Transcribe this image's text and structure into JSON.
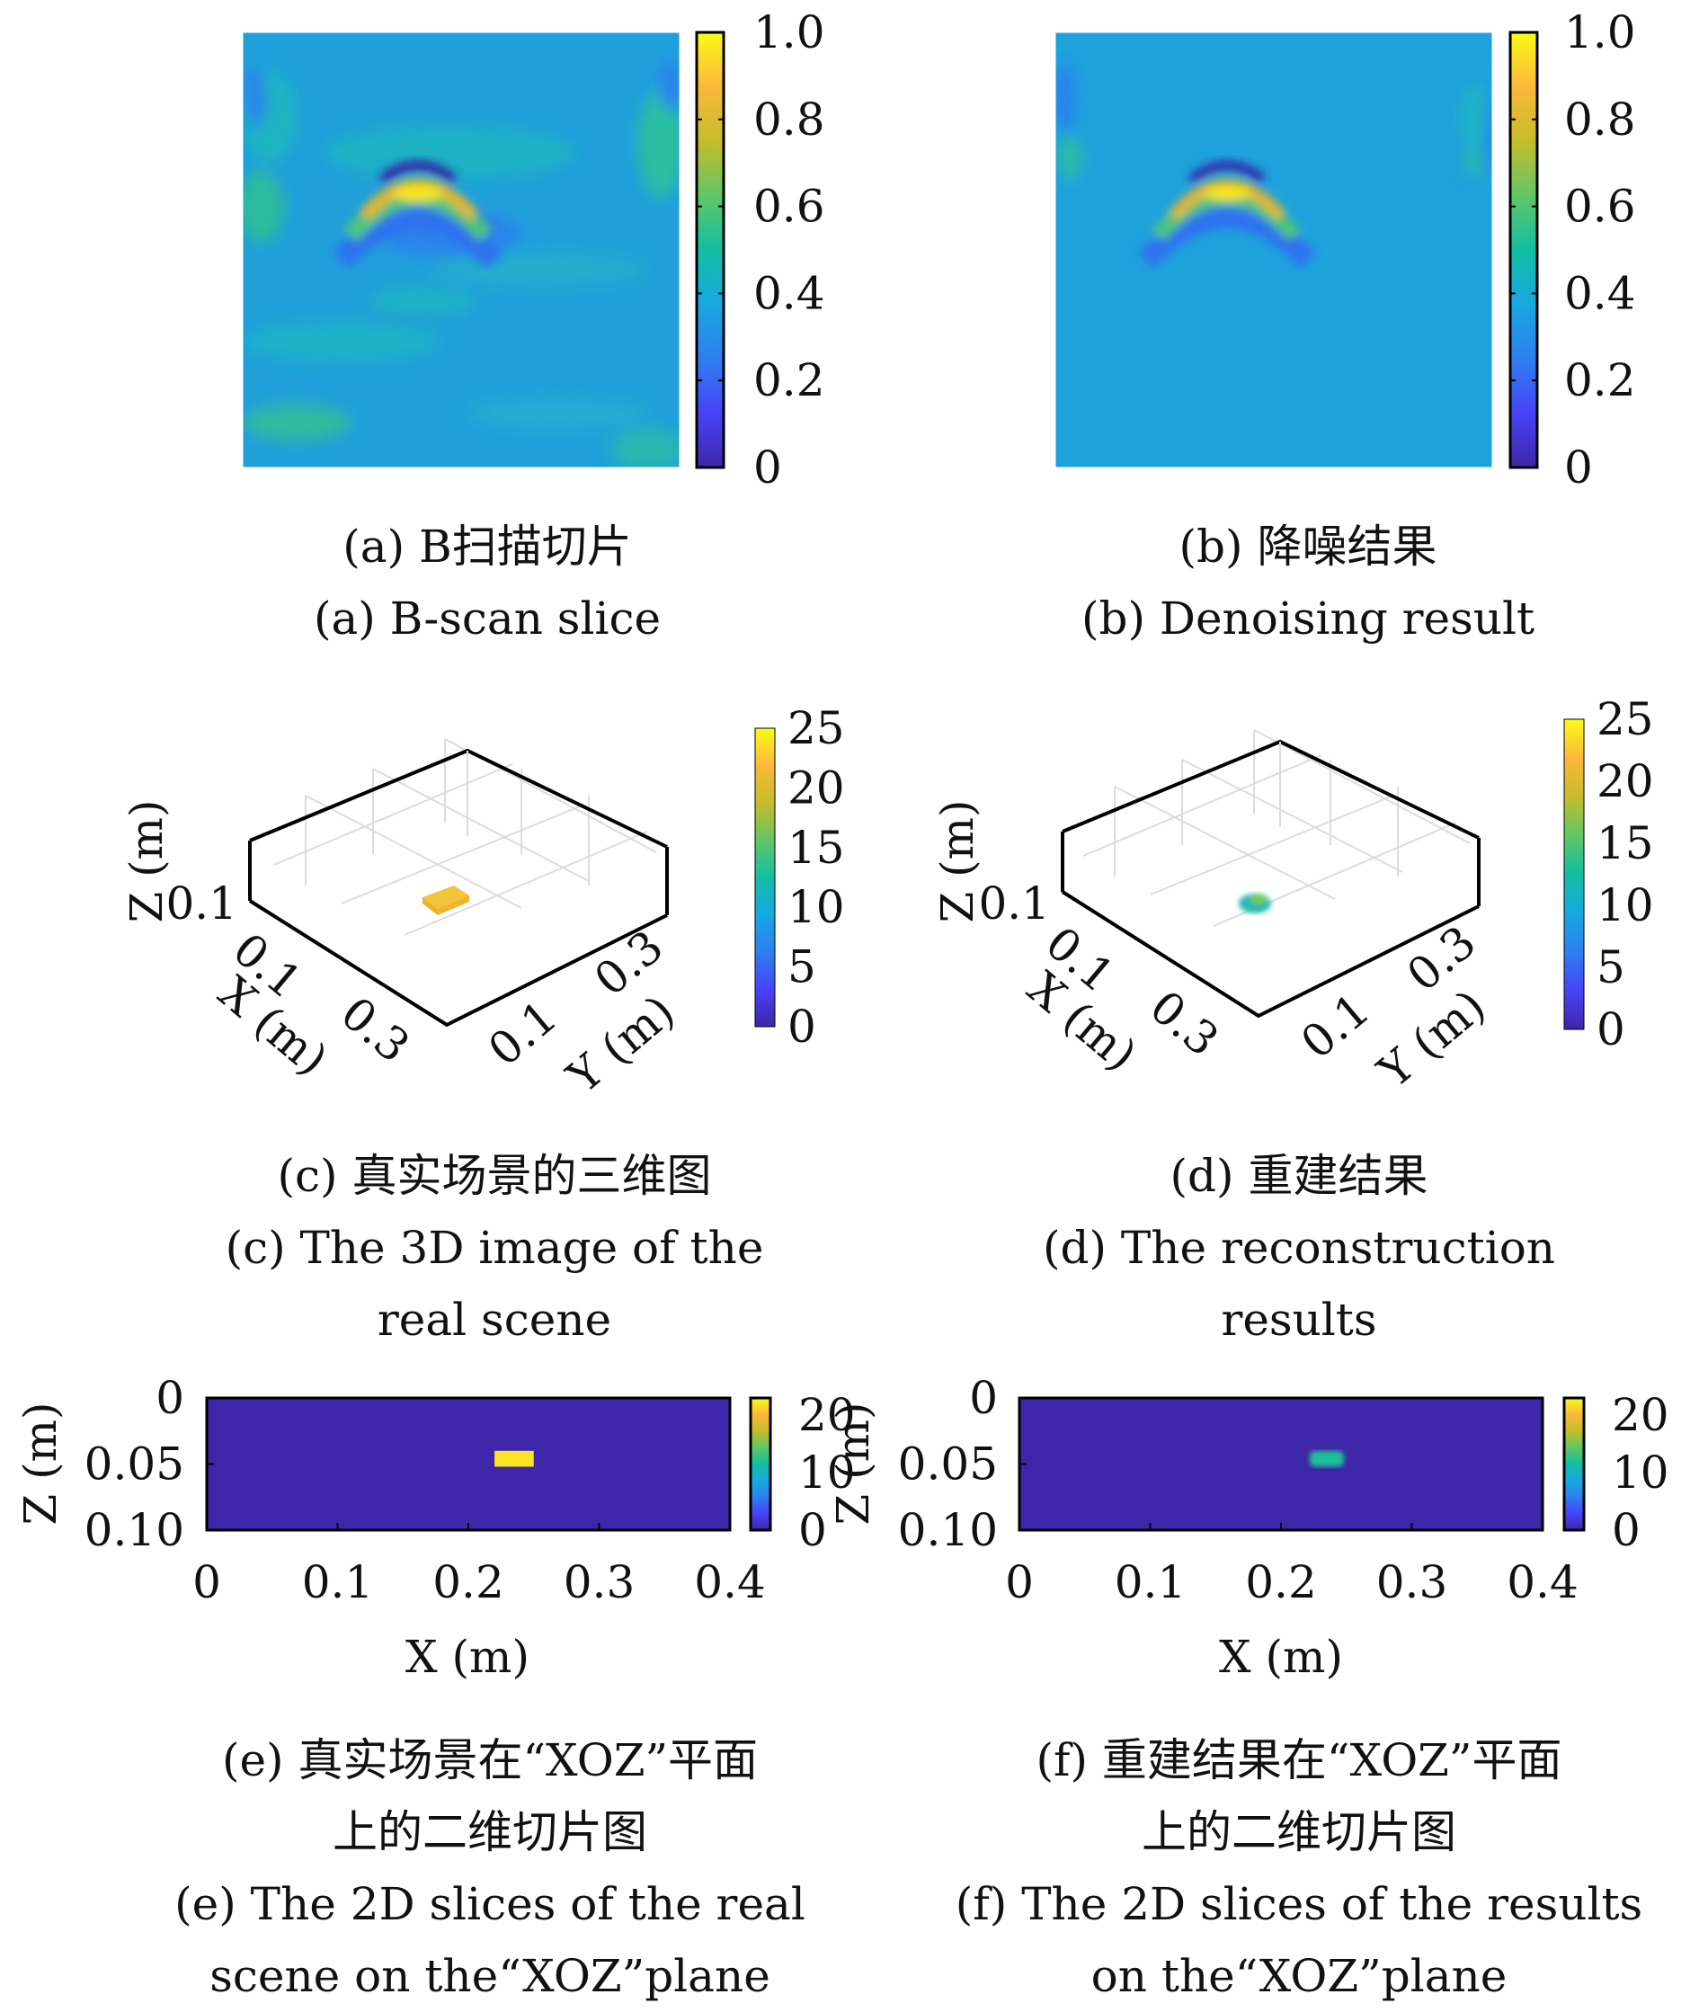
{
  "colorbar_colors": [
    "#3e26a8",
    "#4743f8",
    "#2d7fef",
    "#17a8e2",
    "#11bea3",
    "#60c765",
    "#c5bc2b",
    "#fcb83c",
    "#f9fb15"
  ],
  "panels": {
    "a": {
      "cap_cn": "(a) B扫描切片",
      "cap_en": "(a) B-scan slice"
    },
    "b": {
      "cap_cn": "(b) 降噪结果",
      "cap_en": "(b) Denoising result"
    },
    "c": {
      "cap_cn": "(c) 真实场景的三维图",
      "cap_en_1": "(c) The 3D image of the",
      "cap_en_2": "real scene"
    },
    "d": {
      "cap_cn": "(d) 重建结果",
      "cap_en_1": "(d) The reconstruction",
      "cap_en_2": "results"
    },
    "e": {
      "cap_cn_1": "(e) 真实场景在“XOZ”平面",
      "cap_cn_2": "上的二维切片图",
      "cap_en_1": "(e) The 2D slices of the real",
      "cap_en_2": "scene on the“XOZ”plane"
    },
    "f": {
      "cap_cn_1": "(f) 重建结果在“XOZ”平面",
      "cap_cn_2": "上的二维切片图",
      "cap_en_1": "(f) The 2D slices of the results",
      "cap_en_2": "on the“XOZ”plane"
    }
  },
  "chart_data": [
    {
      "id": "a",
      "type": "heatmap",
      "colorbar": {
        "ticks": [
          "0",
          "0.2",
          "0.4",
          "0.6",
          "0.8",
          "1.0"
        ],
        "range": [
          0,
          1.0
        ]
      }
    },
    {
      "id": "b",
      "type": "heatmap",
      "colorbar": {
        "ticks": [
          "0",
          "0.2",
          "0.4",
          "0.6",
          "0.8",
          "1.0"
        ],
        "range": [
          0,
          1.0
        ]
      }
    },
    {
      "id": "c",
      "type": "scatter",
      "axes": {
        "x_label": "X (m)",
        "y_label": "Y (m)",
        "z_label": "Z (m)",
        "x_ticks": [
          "0.1",
          "0.3"
        ],
        "y_ticks": [
          "0.1",
          "0.3"
        ],
        "z_ticks": [
          "0.1"
        ]
      },
      "colorbar": {
        "ticks": [
          "0",
          "5",
          "10",
          "15",
          "20",
          "25"
        ],
        "range": [
          0,
          25
        ]
      },
      "target_value": 22
    },
    {
      "id": "d",
      "type": "scatter",
      "axes": {
        "x_label": "X (m)",
        "y_label": "Y (m)",
        "z_label": "Z (m)",
        "x_ticks": [
          "0.1",
          "0.3"
        ],
        "y_ticks": [
          "0.1",
          "0.3"
        ],
        "z_ticks": [
          "0.1"
        ]
      },
      "colorbar": {
        "ticks": [
          "0",
          "5",
          "10",
          "15",
          "20",
          "25"
        ],
        "range": [
          0,
          25
        ]
      },
      "target_value": 12
    },
    {
      "id": "e",
      "type": "heatmap",
      "x_label": "X (m)",
      "y_label": "Z (m)",
      "xlim": [
        0,
        0.4
      ],
      "ylim": [
        0,
        0.1
      ],
      "x_ticks": [
        "0",
        "0.1",
        "0.2",
        "0.3",
        "0.4"
      ],
      "y_ticks": [
        "0",
        "0.05",
        "0.10"
      ],
      "colorbar": {
        "ticks": [
          "0",
          "10",
          "20"
        ],
        "range": [
          0,
          23
        ]
      },
      "background_value": 0,
      "target": {
        "x": [
          0.22,
          0.25
        ],
        "z": [
          0.04,
          0.052
        ],
        "value": 22
      }
    },
    {
      "id": "f",
      "type": "heatmap",
      "x_label": "X (m)",
      "y_label": "Z (m)",
      "xlim": [
        0,
        0.4
      ],
      "ylim": [
        0,
        0.1
      ],
      "x_ticks": [
        "0",
        "0.1",
        "0.2",
        "0.3",
        "0.4"
      ],
      "y_ticks": [
        "0",
        "0.05",
        "0.10"
      ],
      "colorbar": {
        "ticks": [
          "0",
          "10",
          "20"
        ],
        "range": [
          0,
          23
        ]
      },
      "background_value": 0,
      "target": {
        "x": [
          0.222,
          0.248
        ],
        "z": [
          0.04,
          0.052
        ],
        "value": 12
      }
    }
  ]
}
